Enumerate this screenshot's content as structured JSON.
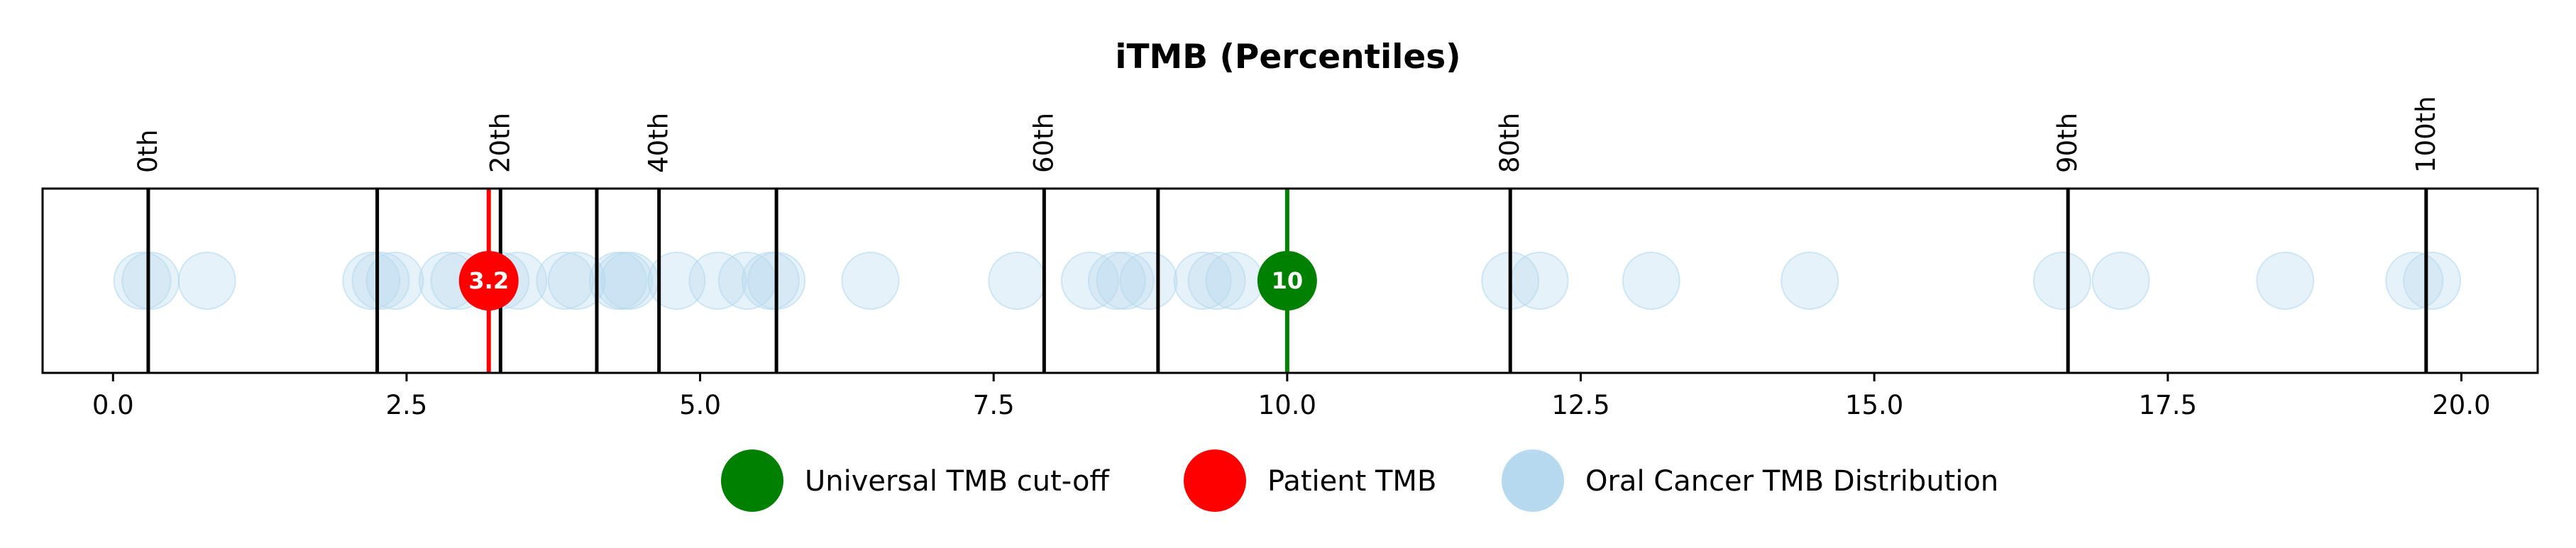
{
  "chart_data": {
    "type": "scatter",
    "title": "iTMB (Percentiles)",
    "xlim": [
      -0.6,
      20.65
    ],
    "x_ticks": [
      0.0,
      2.5,
      5.0,
      7.5,
      10.0,
      12.5,
      15.0,
      17.5,
      20.0
    ],
    "x_tick_labels": [
      "0.0",
      "2.5",
      "5.0",
      "7.5",
      "10.0",
      "12.5",
      "15.0",
      "17.5",
      "20.0"
    ],
    "percentile_lines": [
      {
        "x": 0.3,
        "label": "0th"
      },
      {
        "x": 2.25,
        "label": ""
      },
      {
        "x": 3.3,
        "label": "20th"
      },
      {
        "x": 4.12,
        "label": ""
      },
      {
        "x": 4.65,
        "label": "40th"
      },
      {
        "x": 5.65,
        "label": ""
      },
      {
        "x": 7.93,
        "label": "60th"
      },
      {
        "x": 8.9,
        "label": ""
      },
      {
        "x": 11.9,
        "label": "80th"
      },
      {
        "x": 16.65,
        "label": "90th"
      },
      {
        "x": 19.7,
        "label": "100th"
      }
    ],
    "distribution": {
      "name": "Oral Cancer TMB Distribution",
      "color": "#b6d9ef",
      "x": [
        0.25,
        0.32,
        0.8,
        2.2,
        2.28,
        2.4,
        2.85,
        2.95,
        3.3,
        3.45,
        3.85,
        3.95,
        4.3,
        4.35,
        4.4,
        4.8,
        5.15,
        5.4,
        5.6,
        5.65,
        6.45,
        7.7,
        8.32,
        8.55,
        8.62,
        8.82,
        9.28,
        9.4,
        9.55,
        11.9,
        12.15,
        13.1,
        14.45,
        16.6,
        17.1,
        18.5,
        19.6,
        19.75
      ]
    },
    "patient_tmb": {
      "name": "Patient TMB",
      "x": 3.2,
      "label": "3.2",
      "color": "#ff0000"
    },
    "universal_cutoff": {
      "name": "Universal TMB cut-off",
      "x": 10.0,
      "label": "10",
      "color": "#008000"
    },
    "legend": {
      "placement": "bottom-center",
      "items": [
        {
          "label": "Universal TMB cut-off",
          "color": "#008000"
        },
        {
          "label": "Patient TMB",
          "color": "#ff0000"
        },
        {
          "label": "Oral Cancer TMB Distribution",
          "color": "#b6d9ef"
        }
      ]
    }
  }
}
